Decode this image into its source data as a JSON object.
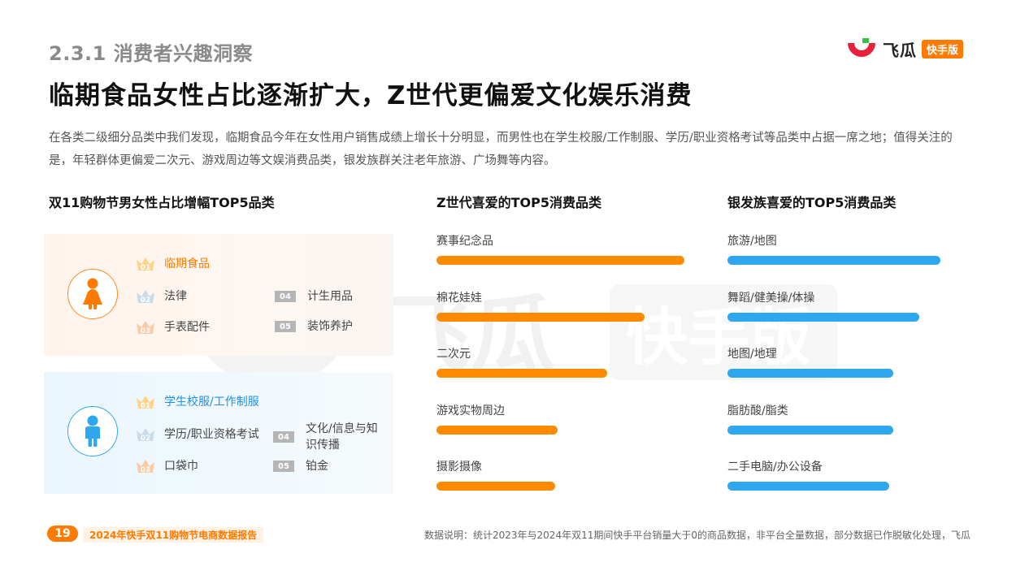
{
  "header": {
    "section": "2.3.1 消费者兴趣洞察",
    "headline": "临期食品女性占比逐渐扩大，Z世代更偏爱文化娱乐消费",
    "intro": "在各类二级细分品类中我们发现，临期食品今年在女性用户销售成绩上增长十分明显，而男性也在学生校服/工作制服、学历/职业资格考试等品类中占据一席之地；值得关注的是，年轻群体更偏爱二次元、游戏周边等文娱消费品类，银发族群关注老年旅游、广场舞等内容。"
  },
  "logo": {
    "name": "飞瓜",
    "tag": "快手版",
    "watermark_name": "飞瓜",
    "watermark_tag": "快手版"
  },
  "gender_panel": {
    "title": "双11购物节男女性占比增幅TOP5品类",
    "female": {
      "items": [
        {
          "rank": "01",
          "label": "临期食品"
        },
        {
          "rank": "02",
          "label": "法律"
        },
        {
          "rank": "03",
          "label": "手表配件"
        },
        {
          "rank": "04",
          "label": "计生用品"
        },
        {
          "rank": "05",
          "label": "装饰养护"
        }
      ]
    },
    "male": {
      "items": [
        {
          "rank": "01",
          "label": "学生校服/工作制服"
        },
        {
          "rank": "02",
          "label": "学历/职业资格考试"
        },
        {
          "rank": "03",
          "label": "口袋巾"
        },
        {
          "rank": "04",
          "label": "文化/信息与知识传播"
        },
        {
          "rank": "05",
          "label": "铂金"
        }
      ]
    }
  },
  "chart_data": [
    {
      "type": "bar",
      "title": "Z世代喜爱的TOP5消费品类",
      "orientation": "horizontal",
      "categories": [
        "赛事纪念品",
        "棉花娃娃",
        "二次元",
        "游戏实物周边",
        "摄影摄像"
      ],
      "values": [
        100,
        84,
        69,
        49,
        48
      ],
      "value_scale": "relative (no axis shown)",
      "color": "#ff8a00"
    },
    {
      "type": "bar",
      "title": "银发族喜爱的TOP5消费品类",
      "orientation": "horizontal",
      "categories": [
        "旅游/地图",
        "舞蹈/健美操/体操",
        "地图/地理",
        "脂肪酸/脂类",
        "二手电脑/办公设备"
      ],
      "values": [
        100,
        90,
        78,
        78,
        76
      ],
      "value_scale": "relative (no axis shown)",
      "color": "#2fa7ee"
    }
  ],
  "footer": {
    "page": "19",
    "report": "2024年快手双11购物节电商数据报告",
    "note": "数据说明：统计2023年与2024年双11期间快手平台销量大于0的商品数据，非平台全量数据，部分数据已作脱敏化处理，飞瓜"
  },
  "colors": {
    "orange": "#ff8a00",
    "blue": "#2fa7ee",
    "logo_red": "#e8203a",
    "logo_green": "#36c24a"
  }
}
